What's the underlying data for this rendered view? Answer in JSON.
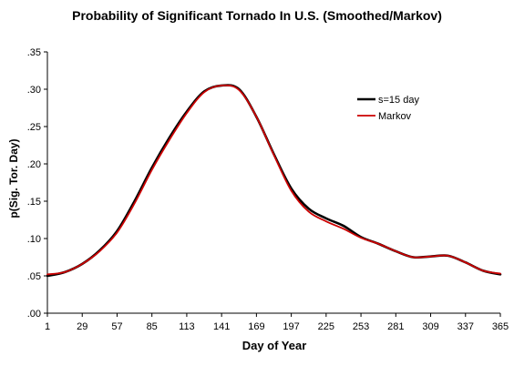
{
  "chart_data": {
    "type": "line",
    "title": "Probability of Significant Tornado In U.S. (Smoothed/Markov)",
    "xlabel": "Day of Year",
    "ylabel": "p(Sig. Tor. Day)",
    "xlim": [
      1,
      365
    ],
    "ylim": [
      0,
      0.35
    ],
    "x_ticks": [
      "1",
      "29",
      "57",
      "85",
      "113",
      "141",
      "169",
      "197",
      "225",
      "253",
      "281",
      "309",
      "337",
      "365"
    ],
    "y_ticks": [
      ".00",
      ".05",
      ".10",
      ".15",
      ".20",
      ".25",
      ".30",
      ".35"
    ],
    "grid": false,
    "legend_position": "top-right",
    "series": [
      {
        "name": "s=15 day",
        "color": "#000000",
        "x": [
          1,
          15,
          29,
          43,
          57,
          71,
          85,
          99,
          113,
          127,
          141,
          155,
          169,
          183,
          197,
          211,
          225,
          239,
          253,
          267,
          281,
          295,
          309,
          323,
          337,
          351,
          365
        ],
        "y": [
          0.05,
          0.055,
          0.066,
          0.084,
          0.11,
          0.15,
          0.195,
          0.235,
          0.27,
          0.297,
          0.305,
          0.3,
          0.263,
          0.213,
          0.167,
          0.14,
          0.127,
          0.117,
          0.102,
          0.093,
          0.083,
          0.075,
          0.076,
          0.077,
          0.068,
          0.057,
          0.052
        ]
      },
      {
        "name": "Markov",
        "color": "#cc0000",
        "x": [
          1,
          15,
          29,
          43,
          57,
          71,
          85,
          99,
          113,
          127,
          141,
          155,
          169,
          183,
          197,
          211,
          225,
          239,
          253,
          267,
          281,
          295,
          309,
          323,
          337,
          351,
          365
        ],
        "y": [
          0.052,
          0.055,
          0.066,
          0.083,
          0.108,
          0.147,
          0.192,
          0.232,
          0.268,
          0.296,
          0.305,
          0.299,
          0.263,
          0.212,
          0.164,
          0.136,
          0.123,
          0.113,
          0.101,
          0.093,
          0.083,
          0.075,
          0.076,
          0.077,
          0.068,
          0.057,
          0.053
        ]
      }
    ]
  }
}
